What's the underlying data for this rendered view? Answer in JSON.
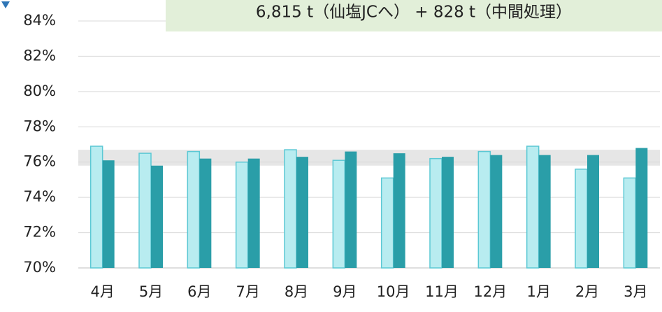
{
  "chart_data": {
    "type": "bar",
    "annotation": "6,815 t（仙塩JCへ） + 828 t（中間処理）",
    "categories": [
      "4月",
      "5月",
      "6月",
      "7月",
      "8月",
      "9月",
      "10月",
      "11月",
      "12月",
      "1月",
      "2月",
      "3月"
    ],
    "series": [
      {
        "color": "#b8ecf0",
        "edge_color": "#5bc8d4",
        "values": [
          76.9,
          76.5,
          76.6,
          76.0,
          76.7,
          76.1,
          75.1,
          76.2,
          76.6,
          76.9,
          75.6,
          75.1
        ]
      },
      {
        "color": "#2a9ea8",
        "values": [
          76.1,
          75.8,
          76.2,
          76.2,
          76.3,
          76.6,
          76.5,
          76.3,
          76.4,
          76.4,
          76.4,
          76.8
        ]
      }
    ],
    "shaded_range": [
      75.8,
      76.7
    ],
    "shaded_color": "#e6e6e6",
    "ylim": [
      70,
      84
    ],
    "yticks": [
      {
        "value": 70,
        "label": "70%"
      },
      {
        "value": 72,
        "label": "72%"
      },
      {
        "value": 74,
        "label": "74%"
      },
      {
        "value": 76,
        "label": "76%"
      },
      {
        "value": 78,
        "label": "78%"
      },
      {
        "value": 80,
        "label": "80%"
      },
      {
        "value": 82,
        "label": "82%"
      },
      {
        "value": 84,
        "label": "84%"
      }
    ],
    "grid": true
  }
}
